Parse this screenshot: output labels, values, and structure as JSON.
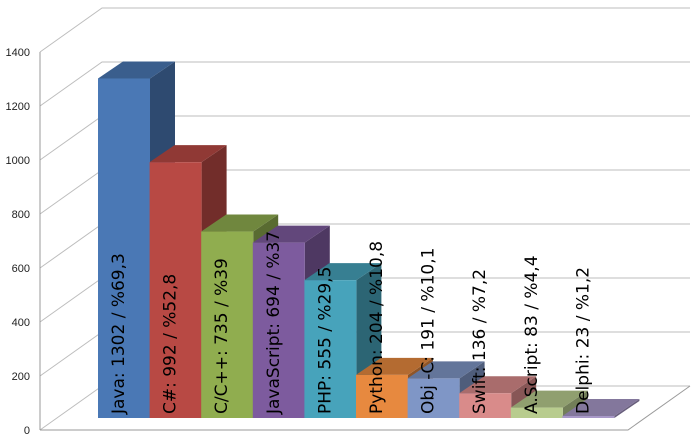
{
  "chart_data": {
    "type": "bar",
    "style": "3d-column",
    "title": "",
    "xlabel": "",
    "ylabel": "",
    "ylim": [
      0,
      1400
    ],
    "yticks": [
      0,
      200,
      400,
      600,
      800,
      1000,
      1200,
      1400
    ],
    "grid": true,
    "legend": "none",
    "categories": [
      "Java",
      "C#",
      "C/C++",
      "JavaScript",
      "PHP",
      "Python",
      "Obj-C",
      "Swift",
      "A.Script",
      "Delphi"
    ],
    "values": [
      1302,
      992,
      735,
      694,
      555,
      204,
      191,
      136,
      83,
      23
    ],
    "data_labels": [
      "Java: 1302 / %69,3",
      "C#: 992 / %52,8",
      "C/C++: 735 / %39",
      "JavaScript: 694 / %37",
      "PHP: 555 / %29,5",
      "Python: 204 / %10,8",
      "Obj -C: 191 / %10,1",
      "Swift: 136 / %7,2",
      "A.Script: 83 / %4,4",
      "Delphi: 23 / %1,2"
    ],
    "colors": [
      "#4a78b5",
      "#b84944",
      "#90ad4f",
      "#7d5b9e",
      "#47a3bb",
      "#e7893f",
      "#7f96c6",
      "#d98b8a",
      "#b8cc8e",
      "#a898c8"
    ]
  }
}
